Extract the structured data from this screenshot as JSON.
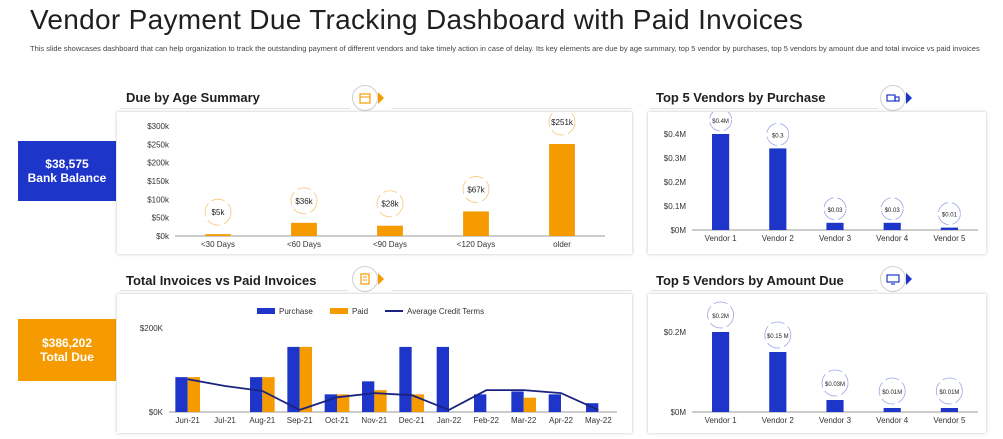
{
  "header": {
    "title": "Vendor Payment Due Tracking Dashboard with Paid Invoices",
    "subtitle": "This slide showcases dashboard that can help organization to track the outstanding payment of different vendors and take timely action in case of delay. Its key elements are due by age summary, top 5 vendor by purchases, top 5 vendors by amount due and total invoice vs paid invoices"
  },
  "kpis": {
    "bank_balance_value": "$38,575",
    "bank_balance_label": "Bank Balance",
    "total_due_value": "$386,202",
    "total_due_label": "Total Due"
  },
  "panels": {
    "age_title": "Due by Age Summary",
    "purchase_title": "Top 5 Vendors by Purchase",
    "invoices_title": "Total Invoices vs Paid Invoices",
    "amount_due_title": "Top 5 Vendors by Amount Due"
  },
  "colors": {
    "blue": "#1d35c9",
    "orange": "#f59b00",
    "navy_line": "#1a237e"
  },
  "chart_data": [
    {
      "id": "due_by_age",
      "type": "bar",
      "title": "Due by Age Summary",
      "categories": [
        "<30 Days",
        "<60 Days",
        "<90 Days",
        "<120 Days",
        "older"
      ],
      "values": [
        5,
        36,
        28,
        67,
        251
      ],
      "labels": [
        "$5k",
        "$36k",
        "$28k",
        "$67k",
        "$251k"
      ],
      "ylim": [
        0,
        300
      ],
      "yticks": [
        0,
        50,
        100,
        150,
        200,
        250,
        300
      ],
      "ytick_labels": [
        "$0k",
        "$50k",
        "$100k",
        "$150k",
        "$200k",
        "$250k",
        "$300k"
      ],
      "color": "#f59b00"
    },
    {
      "id": "top5_purchase",
      "type": "bar",
      "title": "Top 5 Vendors by Purchase",
      "categories": [
        "Vendor 1",
        "Vendor 2",
        "Vendor 3",
        "Vendor 4",
        "Vendor 5"
      ],
      "values": [
        0.4,
        0.34,
        0.03,
        0.03,
        0.01
      ],
      "labels": [
        "$0.4M",
        "$0.3",
        "$0.03",
        "$0.03",
        "$0.01"
      ],
      "ylim": [
        0,
        0.4
      ],
      "yticks": [
        0,
        0.1,
        0.2,
        0.3,
        0.4
      ],
      "ytick_labels": [
        "$0M",
        "$0.1M",
        "$0.2M",
        "$0.3M",
        "$0.4M"
      ],
      "color": "#1d35c9"
    },
    {
      "id": "invoices_vs_paid",
      "type": "bar",
      "title": "Total Invoices vs Paid Invoices",
      "categories": [
        "Jun-21",
        "Jul-21",
        "Aug-21",
        "Sep-21",
        "Oct-21",
        "Nov-21",
        "Dec-21",
        "Jan-22",
        "Feb-22",
        "Mar-22",
        "Apr-22",
        "May-22"
      ],
      "series": [
        {
          "name": "Purchase",
          "values": [
            83,
            0,
            83,
            155,
            42,
            73,
            155,
            155,
            42,
            49,
            42,
            21
          ],
          "color": "#1d35c9"
        },
        {
          "name": "Paid",
          "values": [
            83,
            0,
            83,
            155,
            42,
            52,
            42,
            0,
            0,
            34,
            0,
            0
          ],
          "color": "#f59b00"
        },
        {
          "name": "Average Credit Terms",
          "values": [
            78,
            62,
            50,
            5,
            35,
            45,
            40,
            5,
            52,
            52,
            45,
            5
          ],
          "color": "#1a237e",
          "type": "line"
        }
      ],
      "ylim": [
        0,
        200
      ],
      "yticks": [
        0,
        200
      ],
      "ytick_labels": [
        "$0K",
        "$200K"
      ]
    },
    {
      "id": "top5_amount_due",
      "type": "bar",
      "title": "Top 5 Vendors by Amount Due",
      "categories": [
        "Vendor 1",
        "Vendor 2",
        "Vendor 3",
        "Vendor 4",
        "Vendor 5"
      ],
      "values": [
        0.2,
        0.15,
        0.03,
        0.01,
        0.01
      ],
      "labels": [
        "$0.2M",
        "$0.15 M",
        "$0.03M",
        "$0.01M",
        "$0.01M"
      ],
      "ylim": [
        0,
        0.2
      ],
      "yticks": [
        0,
        0.2
      ],
      "ytick_labels": [
        "$0M",
        "$0.2M"
      ],
      "color": "#1d35c9"
    }
  ]
}
